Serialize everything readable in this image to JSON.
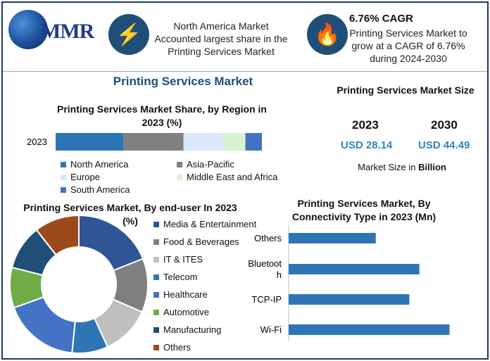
{
  "header": {
    "logo_text": "MMR",
    "north_america_text": "North America Market Accounted largest share in the Printing Services Market",
    "cagr_title": "6.76% CAGR",
    "cagr_text": "Printing Services Market to grow at a CAGR of 6.76% during 2024-2030"
  },
  "main_title": "Printing Services Market",
  "market_size": {
    "title": "Printing Services Market Size",
    "year_a": "2023",
    "year_b": "2030",
    "value_a": "USD 28.14",
    "value_b": "USD 44.49",
    "note_prefix": "Market Size in ",
    "note_bold": "Billion"
  },
  "colors": {
    "north_america": "#2e75b6",
    "asia_pacific": "#808080",
    "europe": "#dae8fc",
    "middle_east_africa": "#d9f2d0",
    "south_america": "#4472c4",
    "media": "#2f5597",
    "food": "#7f7f7f",
    "it": "#bfbfbf",
    "telecom": "#2e75b6",
    "healthcare": "#4472c4",
    "automotive": "#70ad47",
    "manufacturing": "#1f4e79",
    "others": "#9c4a1a",
    "conn_bar": "#2e75b6"
  },
  "chart_data": [
    {
      "type": "bar",
      "orientation": "horizontal-stacked",
      "title": "Printing Services Market Share, by Region in 2023 (%)",
      "categories": [
        "2023"
      ],
      "series": [
        {
          "name": "North America",
          "values": [
            33
          ]
        },
        {
          "name": "Asia-Pacific",
          "values": [
            29
          ]
        },
        {
          "name": "Europe",
          "values": [
            19
          ]
        },
        {
          "name": "Middle East and Africa",
          "values": [
            11
          ]
        },
        {
          "name": "South America",
          "values": [
            8
          ]
        }
      ],
      "legend": "bottom"
    },
    {
      "type": "pie",
      "donut": true,
      "title": "Printing Services Market, By end-user In 2023 (%)",
      "labels": [
        "Media & Entertainment",
        "Food & Beverages",
        "IT & ITES",
        "Telecom",
        "Healthcare",
        "Automotive",
        "Manufacturing",
        "Others"
      ],
      "values": [
        18,
        12,
        11,
        8,
        17,
        9,
        10,
        10
      ],
      "legend": "right"
    },
    {
      "type": "bar",
      "orientation": "horizontal",
      "title": "Printing Services Market, By Connectivity Type in 2023 (Mn)",
      "categories": [
        "Others",
        "Bluetooth",
        "TCP-IP",
        "Wi-Fi"
      ],
      "category_labels_display": [
        "Others",
        "Bluetoot\nh",
        "TCP-IP",
        "Wi-Fi"
      ],
      "values": [
        52,
        78,
        72,
        96
      ],
      "xlim": [
        0,
        100
      ]
    }
  ]
}
